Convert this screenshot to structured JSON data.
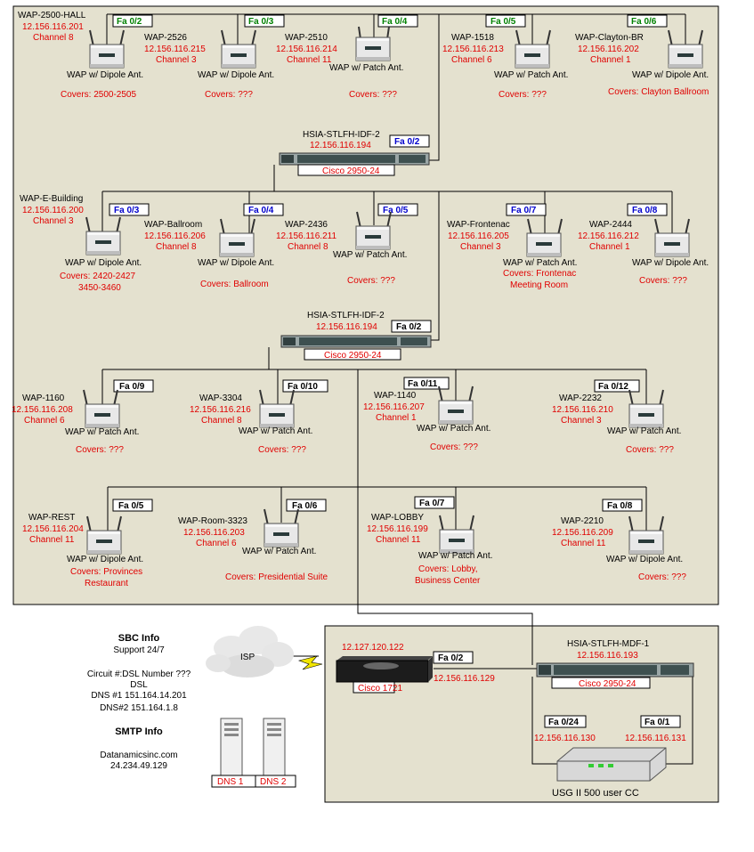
{
  "colors": {
    "panel": "#e4e1cf",
    "line": "#000000",
    "ip_text": "#e00000",
    "port_green": "#008000",
    "port_blue": "#0000cc",
    "port_black": "#000000"
  },
  "switches": [
    {
      "name": "HSIA-STLFH-IDF-2",
      "ip": "12.156.116.194",
      "model": "Cisco 2950-24",
      "port": "Fa 0/2"
    },
    {
      "name": "HSIA-STLFH-IDF-2",
      "ip": "12.156.116.194",
      "model": "Cisco 2950-24",
      "port": "Fa 0/2"
    }
  ],
  "waps_row1": [
    {
      "name": "WAP-2500-HALL",
      "ip": "12.156.116.201",
      "channel": "Channel 8",
      "port": "Fa 0/2",
      "type": "WAP w/ Dipole Ant.",
      "covers": "Covers:  2500-2505"
    },
    {
      "name": "WAP-2526",
      "ip": "12.156.116.215",
      "channel": "Channel 3",
      "port": "Fa 0/3",
      "type": "WAP w/ Dipole Ant.",
      "covers": "Covers: ???"
    },
    {
      "name": "WAP-2510",
      "ip": "12.156.116.214",
      "channel": "Channel 11",
      "port": "Fa 0/4",
      "type": "WAP w/ Patch Ant.",
      "covers": "Covers: ???"
    },
    {
      "name": "WAP-1518",
      "ip": "12.156.116.213",
      "channel": "Channel 6",
      "port": "Fa 0/5",
      "type": "WAP w/ Patch Ant.",
      "covers": "Covers: ???"
    },
    {
      "name": "WAP-Clayton-BR",
      "ip": "12.156.116.202",
      "channel": "Channel 1",
      "port": "Fa 0/6",
      "type": "WAP w/ Dipole Ant.",
      "covers": "Covers: Clayton Ballroom"
    }
  ],
  "waps_row2": [
    {
      "name": "WAP-E-Building",
      "ip": "12.156.116.200",
      "channel": "Channel 3",
      "port": "Fa 0/3",
      "type": "WAP w/ Dipole Ant.",
      "covers": "Covers:  2420-2427",
      "covers2": "3450-3460"
    },
    {
      "name": "WAP-Ballroom",
      "ip": "12.156.116.206",
      "channel": "Channel 8",
      "port": "Fa 0/4",
      "type": "WAP w/ Dipole Ant.",
      "covers": "Covers: Ballroom"
    },
    {
      "name": "WAP-2436",
      "ip": "12.156.116.211",
      "channel": "Channel 8",
      "port": "Fa 0/5",
      "type": "WAP w/ Patch Ant.",
      "covers": "Covers: ???"
    },
    {
      "name": "WAP-Frontenac",
      "ip": "12.156.116.205",
      "channel": "Channel 3",
      "port": "Fa 0/7",
      "type": "WAP w/ Patch Ant.",
      "covers": "Covers: Frontenac",
      "covers2": "Meeting Room"
    },
    {
      "name": "WAP-2444",
      "ip": "12.156.116.212",
      "channel": "Channel 1",
      "port": "Fa 0/8",
      "type": "WAP w/ Dipole Ant.",
      "covers": "Covers: ???"
    }
  ],
  "waps_row3": [
    {
      "name": "WAP-1160",
      "ip": "12.156.116.208",
      "channel": "Channel 6",
      "port": "Fa 0/9",
      "type": "WAP w/ Patch Ant.",
      "covers": "Covers: ???"
    },
    {
      "name": "WAP-3304",
      "ip": "12.156.116.216",
      "channel": "Channel 8",
      "port": "Fa 0/10",
      "type": "WAP w/ Patch Ant.",
      "covers": "Covers: ???"
    },
    {
      "name": "WAP-1140",
      "ip": "12.156.116.207",
      "channel": "Channel 1",
      "port": "Fa 0/11",
      "type": "WAP w/ Patch Ant.",
      "covers": "Covers: ???"
    },
    {
      "name": "WAP-2232",
      "ip": "12.156.116.210",
      "channel": "Channel 3",
      "port": "Fa 0/12",
      "type": "WAP w/ Patch Ant.",
      "covers": "Covers: ???"
    }
  ],
  "waps_row4": [
    {
      "name": "WAP-REST",
      "ip": "12.156.116.204",
      "channel": "Channel 11",
      "port": "Fa 0/5",
      "type": "WAP w/ Dipole Ant.",
      "covers": "Covers: Provinces",
      "covers2": "Restaurant"
    },
    {
      "name": "WAP-Room-3323",
      "ip": "12.156.116.203",
      "channel": "Channel 6",
      "port": "Fa 0/6",
      "type": "WAP w/ Patch Ant.",
      "covers": "Covers: Presidential Suite"
    },
    {
      "name": "WAP-LOBBY",
      "ip": "12.156.116.199",
      "channel": "Channel 11",
      "port": "Fa 0/7",
      "type": "WAP w/ Patch Ant.",
      "covers": "Covers: Lobby,",
      "covers2": "Business Center"
    },
    {
      "name": "WAP-2210",
      "ip": "12.156.116.209",
      "channel": "Channel 11",
      "port": "Fa 0/8",
      "type": "WAP w/ Dipole Ant.",
      "covers": "Covers: ???"
    }
  ],
  "mdf": {
    "name": "HSIA-STLFH-MDF-1",
    "ip": "12.156.116.193",
    "model": "Cisco 2950-24",
    "port_a": "Fa 0/24",
    "ip_a": "12.156.116.130",
    "port_b": "Fa 0/1",
    "ip_b": "12.156.116.131"
  },
  "router": {
    "ip_wan": "12.127.120.122",
    "port": "Fa 0/2",
    "ip_lan": "12.156.116.129",
    "model": "Cisco 1721"
  },
  "usg": {
    "label": "USG II 500 user CC"
  },
  "isp": {
    "label": "ISP"
  },
  "sbc": {
    "title": "SBC Info",
    "support": "Support 24/7",
    "circuit": "Circuit #:DSL Number ???",
    "dsl": "DSL",
    "dns1": "DNS #1 151.164.14.201",
    "dns2": "DNS#2 151.164.1.8"
  },
  "smtp": {
    "title": "SMTP Info",
    "host": "Datanamicsinc.com",
    "ip": "24.234.49.129"
  },
  "dns_servers": {
    "dns1": "DNS 1",
    "dns2": "DNS 2"
  }
}
